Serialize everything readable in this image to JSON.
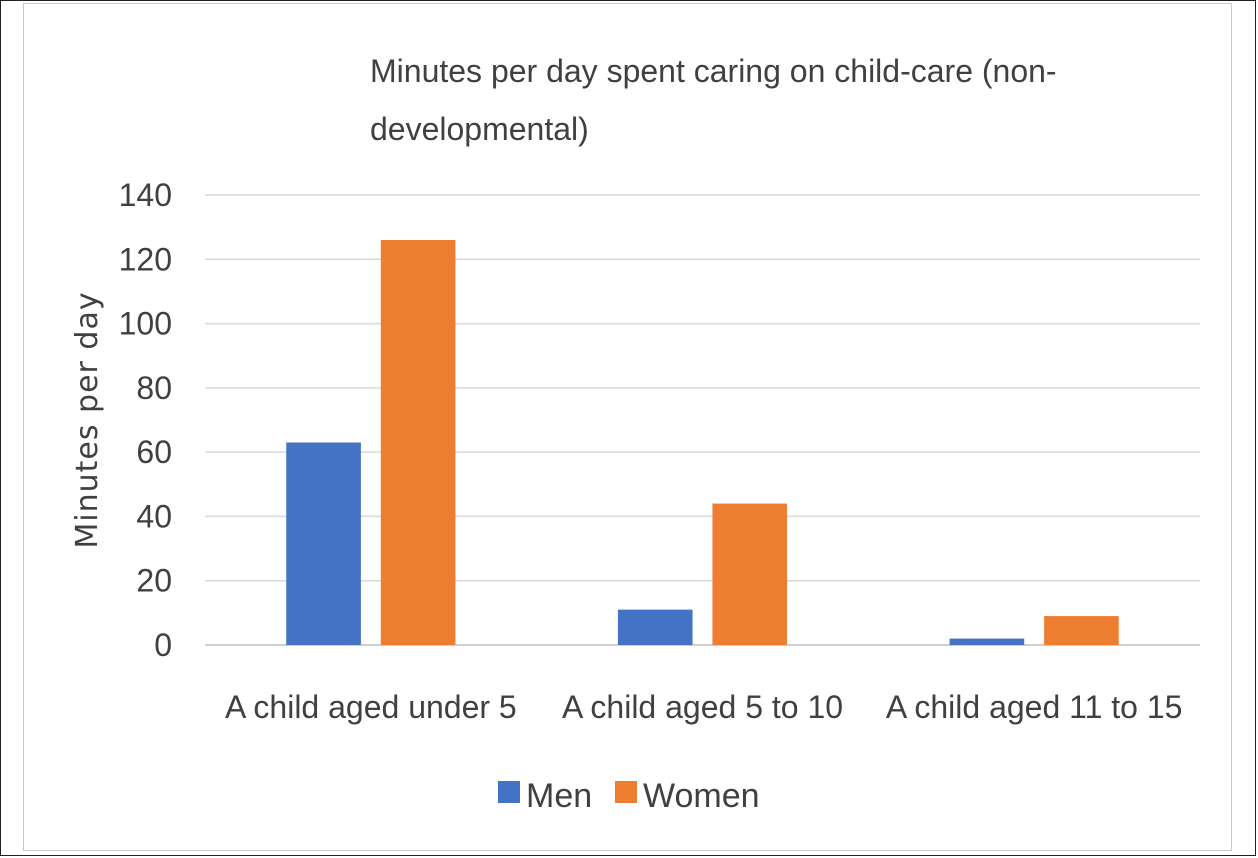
{
  "chart_data": {
    "type": "bar",
    "title_lines": [
      "Minutes per day spent caring on child-care (non-",
      "developmental)"
    ],
    "ylabel": "Minutes per day",
    "xlabel": "",
    "categories": [
      "A child aged under 5",
      "A child aged 5 to 10",
      "A child aged 11 to 15"
    ],
    "series": [
      {
        "name": "Men",
        "color": "#4472c4",
        "values": [
          63,
          11,
          2
        ]
      },
      {
        "name": "Women",
        "color": "#ed7d31",
        "values": [
          126,
          44,
          9
        ]
      }
    ],
    "ylim": [
      0,
      140
    ],
    "yticks": [
      "0",
      "20",
      "40",
      "60",
      "80",
      "100",
      "120",
      "140"
    ],
    "grid": true,
    "legend_position": "bottom"
  }
}
